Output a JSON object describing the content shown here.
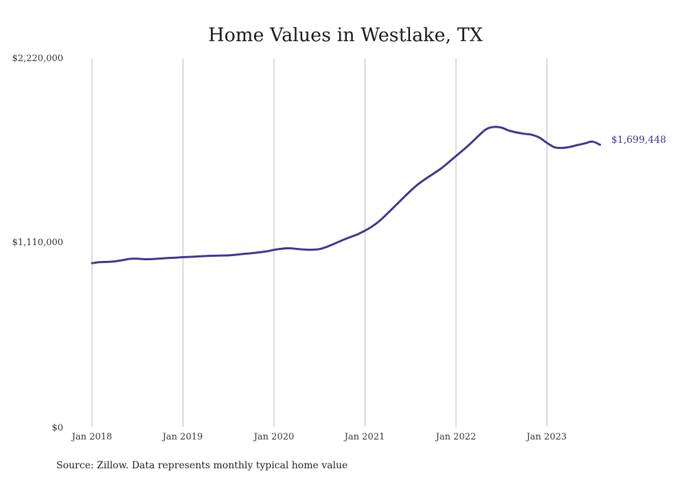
{
  "chart_data": {
    "type": "line",
    "title": "Home Values in Westlake, TX",
    "xlabel": "",
    "ylabel": "",
    "ylim": [
      0,
      2220000
    ],
    "y_ticks": [
      "$0",
      "$1,110,000",
      "$2,220,000"
    ],
    "y_tick_values": [
      0,
      1110000,
      2220000
    ],
    "x_ticks": [
      "Jan 2018",
      "Jan 2019",
      "Jan 2020",
      "Jan 2021",
      "Jan 2022",
      "Jan 2023"
    ],
    "x_tick_dates": [
      "2018-01",
      "2019-01",
      "2020-01",
      "2021-01",
      "2022-01",
      "2023-01"
    ],
    "grid": "vertical",
    "line_color": "#3d3594",
    "end_label": "$1,699,448",
    "series": [
      {
        "x": [
          "2018-01",
          "2018-02",
          "2018-03",
          "2018-04",
          "2018-05",
          "2018-06",
          "2018-07",
          "2018-08",
          "2018-09",
          "2018-10",
          "2018-11",
          "2018-12",
          "2019-01",
          "2019-02",
          "2019-03",
          "2019-04",
          "2019-05",
          "2019-06",
          "2019-07",
          "2019-08",
          "2019-09",
          "2019-10",
          "2019-11",
          "2019-12",
          "2020-01",
          "2020-02",
          "2020-03",
          "2020-04",
          "2020-05",
          "2020-06",
          "2020-07",
          "2020-08",
          "2020-09",
          "2020-10",
          "2020-11",
          "2020-12",
          "2021-01",
          "2021-02",
          "2021-03",
          "2021-04",
          "2021-05",
          "2021-06",
          "2021-07",
          "2021-08",
          "2021-09",
          "2021-10",
          "2021-11",
          "2021-12",
          "2022-01",
          "2022-02",
          "2022-03",
          "2022-04",
          "2022-05",
          "2022-06",
          "2022-07",
          "2022-08",
          "2022-09",
          "2022-10",
          "2022-11",
          "2022-12",
          "2023-01",
          "2023-02",
          "2023-03",
          "2023-04",
          "2023-05",
          "2023-06",
          "2023-07",
          "2023-08"
        ],
        "values": [
          987000,
          993000,
          995000,
          998000,
          1005000,
          1013000,
          1014000,
          1011000,
          1012000,
          1015000,
          1018000,
          1020000,
          1023000,
          1025000,
          1028000,
          1030000,
          1032000,
          1033000,
          1034000,
          1038000,
          1043000,
          1047000,
          1052000,
          1058000,
          1067000,
          1074000,
          1077000,
          1073000,
          1069000,
          1068000,
          1072000,
          1086000,
          1105000,
          1125000,
          1143000,
          1160000,
          1183000,
          1210000,
          1245000,
          1288000,
          1333000,
          1378000,
          1422000,
          1462000,
          1495000,
          1525000,
          1556000,
          1593000,
          1632000,
          1670000,
          1711000,
          1755000,
          1794000,
          1807000,
          1803000,
          1785000,
          1774000,
          1766000,
          1760000,
          1743000,
          1711000,
          1685000,
          1681000,
          1687000,
          1698000,
          1708000,
          1719000,
          1699448
        ]
      }
    ]
  },
  "source_note": "Source: Zillow. Data represents monthly typical home value"
}
